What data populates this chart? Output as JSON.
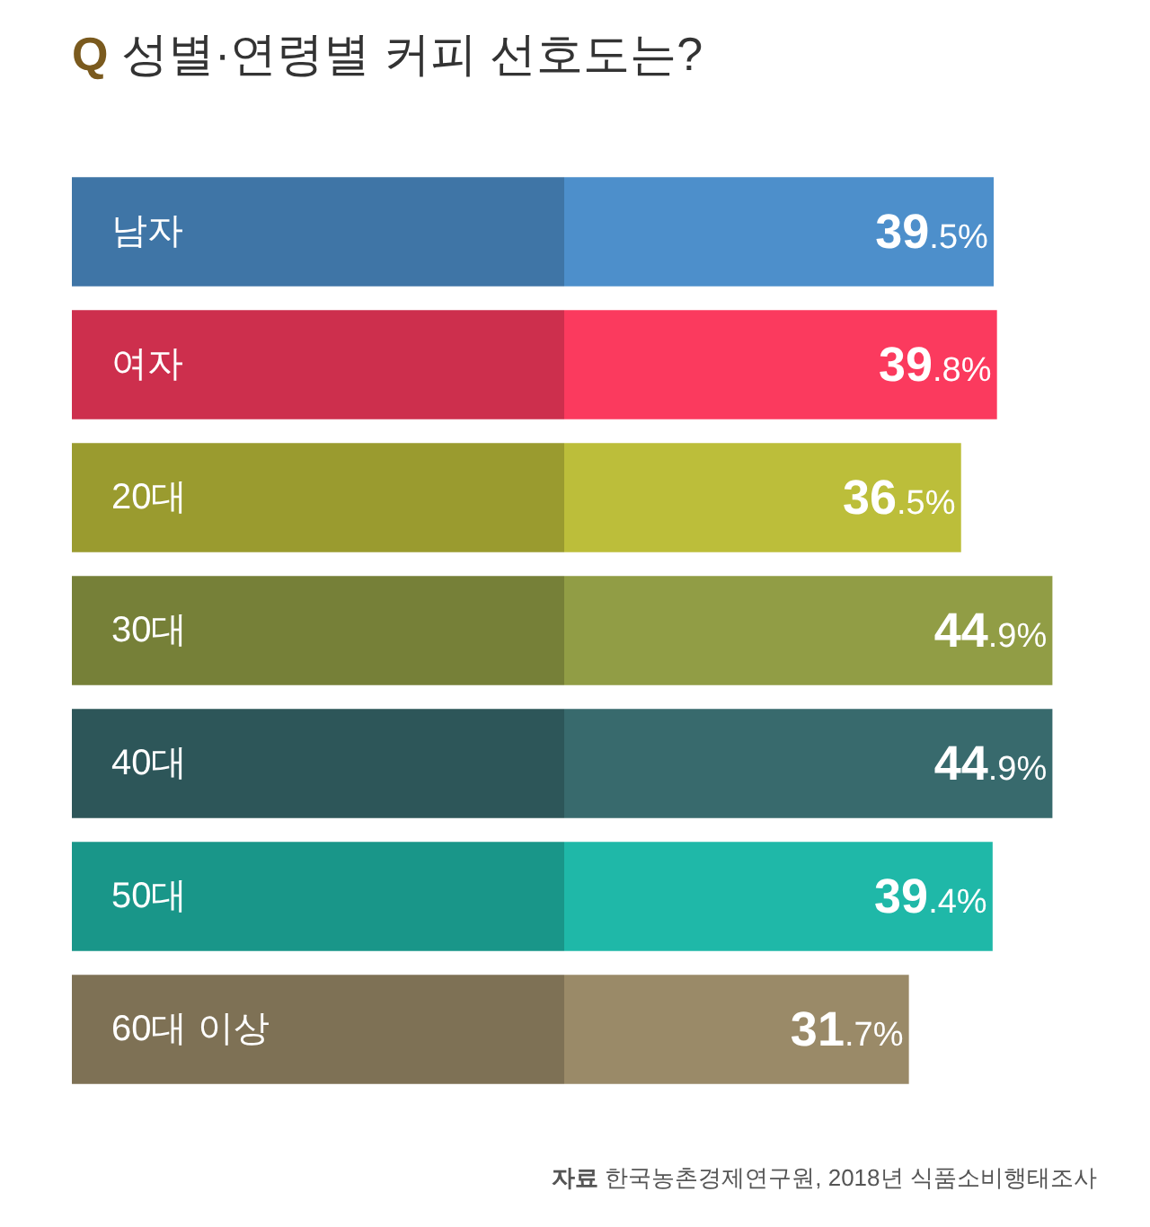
{
  "chart_data": {
    "type": "bar",
    "orientation": "horizontal",
    "title": "Q 성별·연령별 커피 선호도는?",
    "categories": [
      "남자",
      "여자",
      "20대",
      "30대",
      "40대",
      "50대",
      "60대 이상"
    ],
    "values": [
      39.5,
      39.8,
      36.5,
      44.9,
      44.9,
      39.4,
      31.7
    ],
    "colors": [
      "#4d8fcb",
      "#fb3a5e",
      "#bcbe3a",
      "#919d45",
      "#386a6d",
      "#1fb8a8",
      "#9a8a68"
    ],
    "value_labels": [
      "39.5%",
      "39.8%",
      "36.5%",
      "44.9%",
      "44.9%",
      "39.4%",
      "31.7%"
    ],
    "annotations": [
      "자료 한국농촌경제연구원, 2018년 식품소비행태조사"
    ],
    "tick_labels": "y"
  }
}
